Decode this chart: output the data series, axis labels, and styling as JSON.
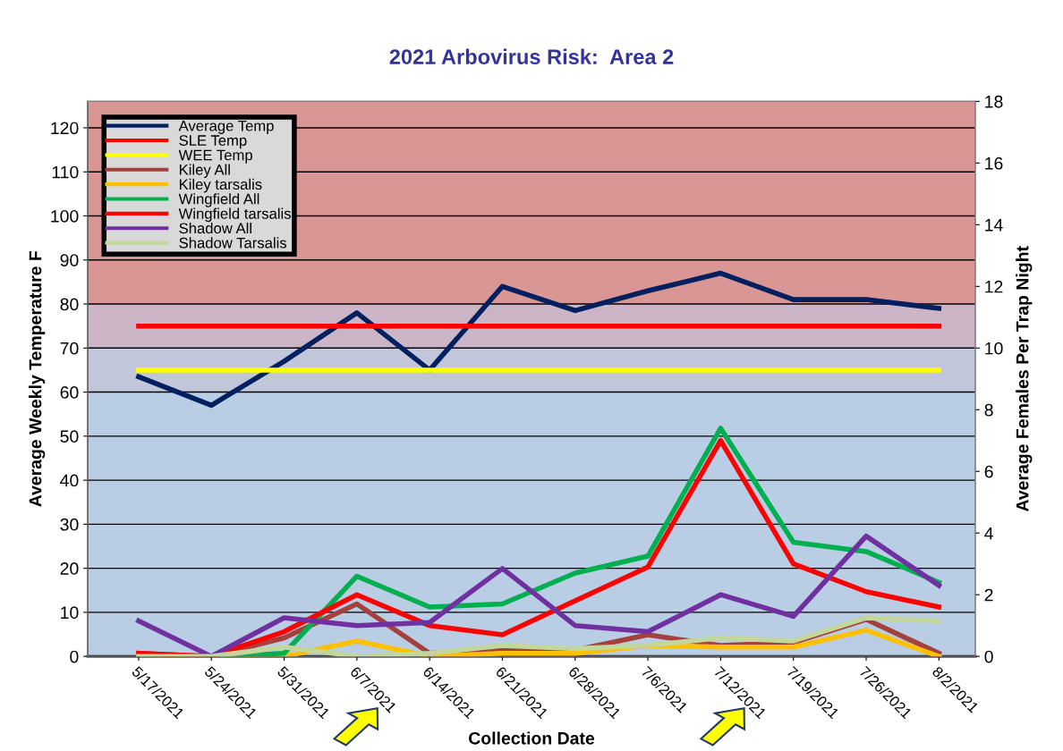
{
  "chart_data": {
    "type": "line",
    "title": "2021 Arbovirus Risk:  Area 2",
    "xlabel": "Collection Date",
    "ylabel": "Average Weekly Temperature F",
    "y2label": "Average Females Per Trap Night",
    "categories": [
      "5/17/2021",
      "5/24/2021",
      "5/31/2021",
      "6/7/2021",
      "6/14/2021",
      "6/21/2021",
      "6/28/2021",
      "7/6/2021",
      "7/12/2021",
      "7/19/2021",
      "7/26/2021",
      "8/2/2021"
    ],
    "series": [
      {
        "name": "Average Temp",
        "color": "#002060",
        "values": [
          63.5,
          57,
          67,
          78,
          65,
          84,
          78.5,
          83,
          87,
          81,
          81,
          79
        ]
      },
      {
        "name": "SLE Temp",
        "color": "#ff0000",
        "values": [
          75,
          75,
          75,
          75,
          75,
          75,
          75,
          75,
          75,
          75,
          75,
          75
        ]
      },
      {
        "name": "WEE Temp",
        "color": "#ffff00",
        "values": [
          65,
          65,
          65,
          65,
          65,
          65,
          65,
          65,
          65,
          65,
          65,
          65
        ]
      },
      {
        "name": "Kiley All",
        "color": "#a5413c",
        "axis": "y2",
        "values": [
          0.1,
          0,
          0.6,
          1.7,
          0.1,
          0.25,
          0.2,
          0.7,
          0.35,
          0.45,
          1.2,
          0.1
        ]
      },
      {
        "name": "Kiley tarsalis",
        "color": "#ffc000",
        "axis": "y2",
        "values": [
          0,
          0,
          0,
          0.5,
          0,
          0.1,
          0.1,
          0.35,
          0.3,
          0.3,
          0.85,
          0
        ]
      },
      {
        "name": "Wingfield All",
        "color": "#00b050",
        "axis": "y2",
        "values": [
          0,
          0,
          0.1,
          2.6,
          1.6,
          1.7,
          2.7,
          3.25,
          7.4,
          3.7,
          3.4,
          2.4
        ]
      },
      {
        "name": "Wingfield tarsalis",
        "color": "#ff0000",
        "axis": "y2",
        "values": [
          0.1,
          0,
          0.8,
          2.0,
          1.0,
          0.7,
          1.8,
          2.9,
          7.0,
          3.0,
          2.1,
          1.6
        ]
      },
      {
        "name": "Shadow All",
        "color": "#7030a0",
        "axis": "y2",
        "values": [
          1.15,
          0,
          1.25,
          1.0,
          1.1,
          2.85,
          1.0,
          0.8,
          2.0,
          1.3,
          3.9,
          2.3
        ]
      },
      {
        "name": "Shadow Tarsalis",
        "color": "#c3d69b",
        "axis": "y2",
        "values": [
          0,
          0,
          0.3,
          0,
          0.1,
          0.35,
          0.25,
          0.35,
          0.6,
          0.5,
          1.25,
          1.15
        ]
      }
    ],
    "ylim": [
      0,
      126
    ],
    "yticks": [
      0,
      10,
      20,
      30,
      40,
      50,
      60,
      70,
      80,
      90,
      100,
      110,
      120
    ],
    "y2lim": [
      0,
      18
    ],
    "y2ticks": [
      0,
      2,
      4,
      6,
      8,
      10,
      12,
      14,
      16,
      18
    ],
    "bands": [
      {
        "axis": "y",
        "from": 0,
        "to": 60,
        "color": "#b9cde5"
      },
      {
        "axis": "y",
        "from": 60,
        "to": 70,
        "color": "#c2c6da"
      },
      {
        "axis": "y",
        "from": 70,
        "to": 80,
        "color": "#cbb5c6"
      },
      {
        "axis": "y",
        "from": 80,
        "to": 126,
        "color": "#d99694"
      }
    ],
    "grid": "y",
    "legend": "top left",
    "marker": "none",
    "line_style": "solid"
  }
}
